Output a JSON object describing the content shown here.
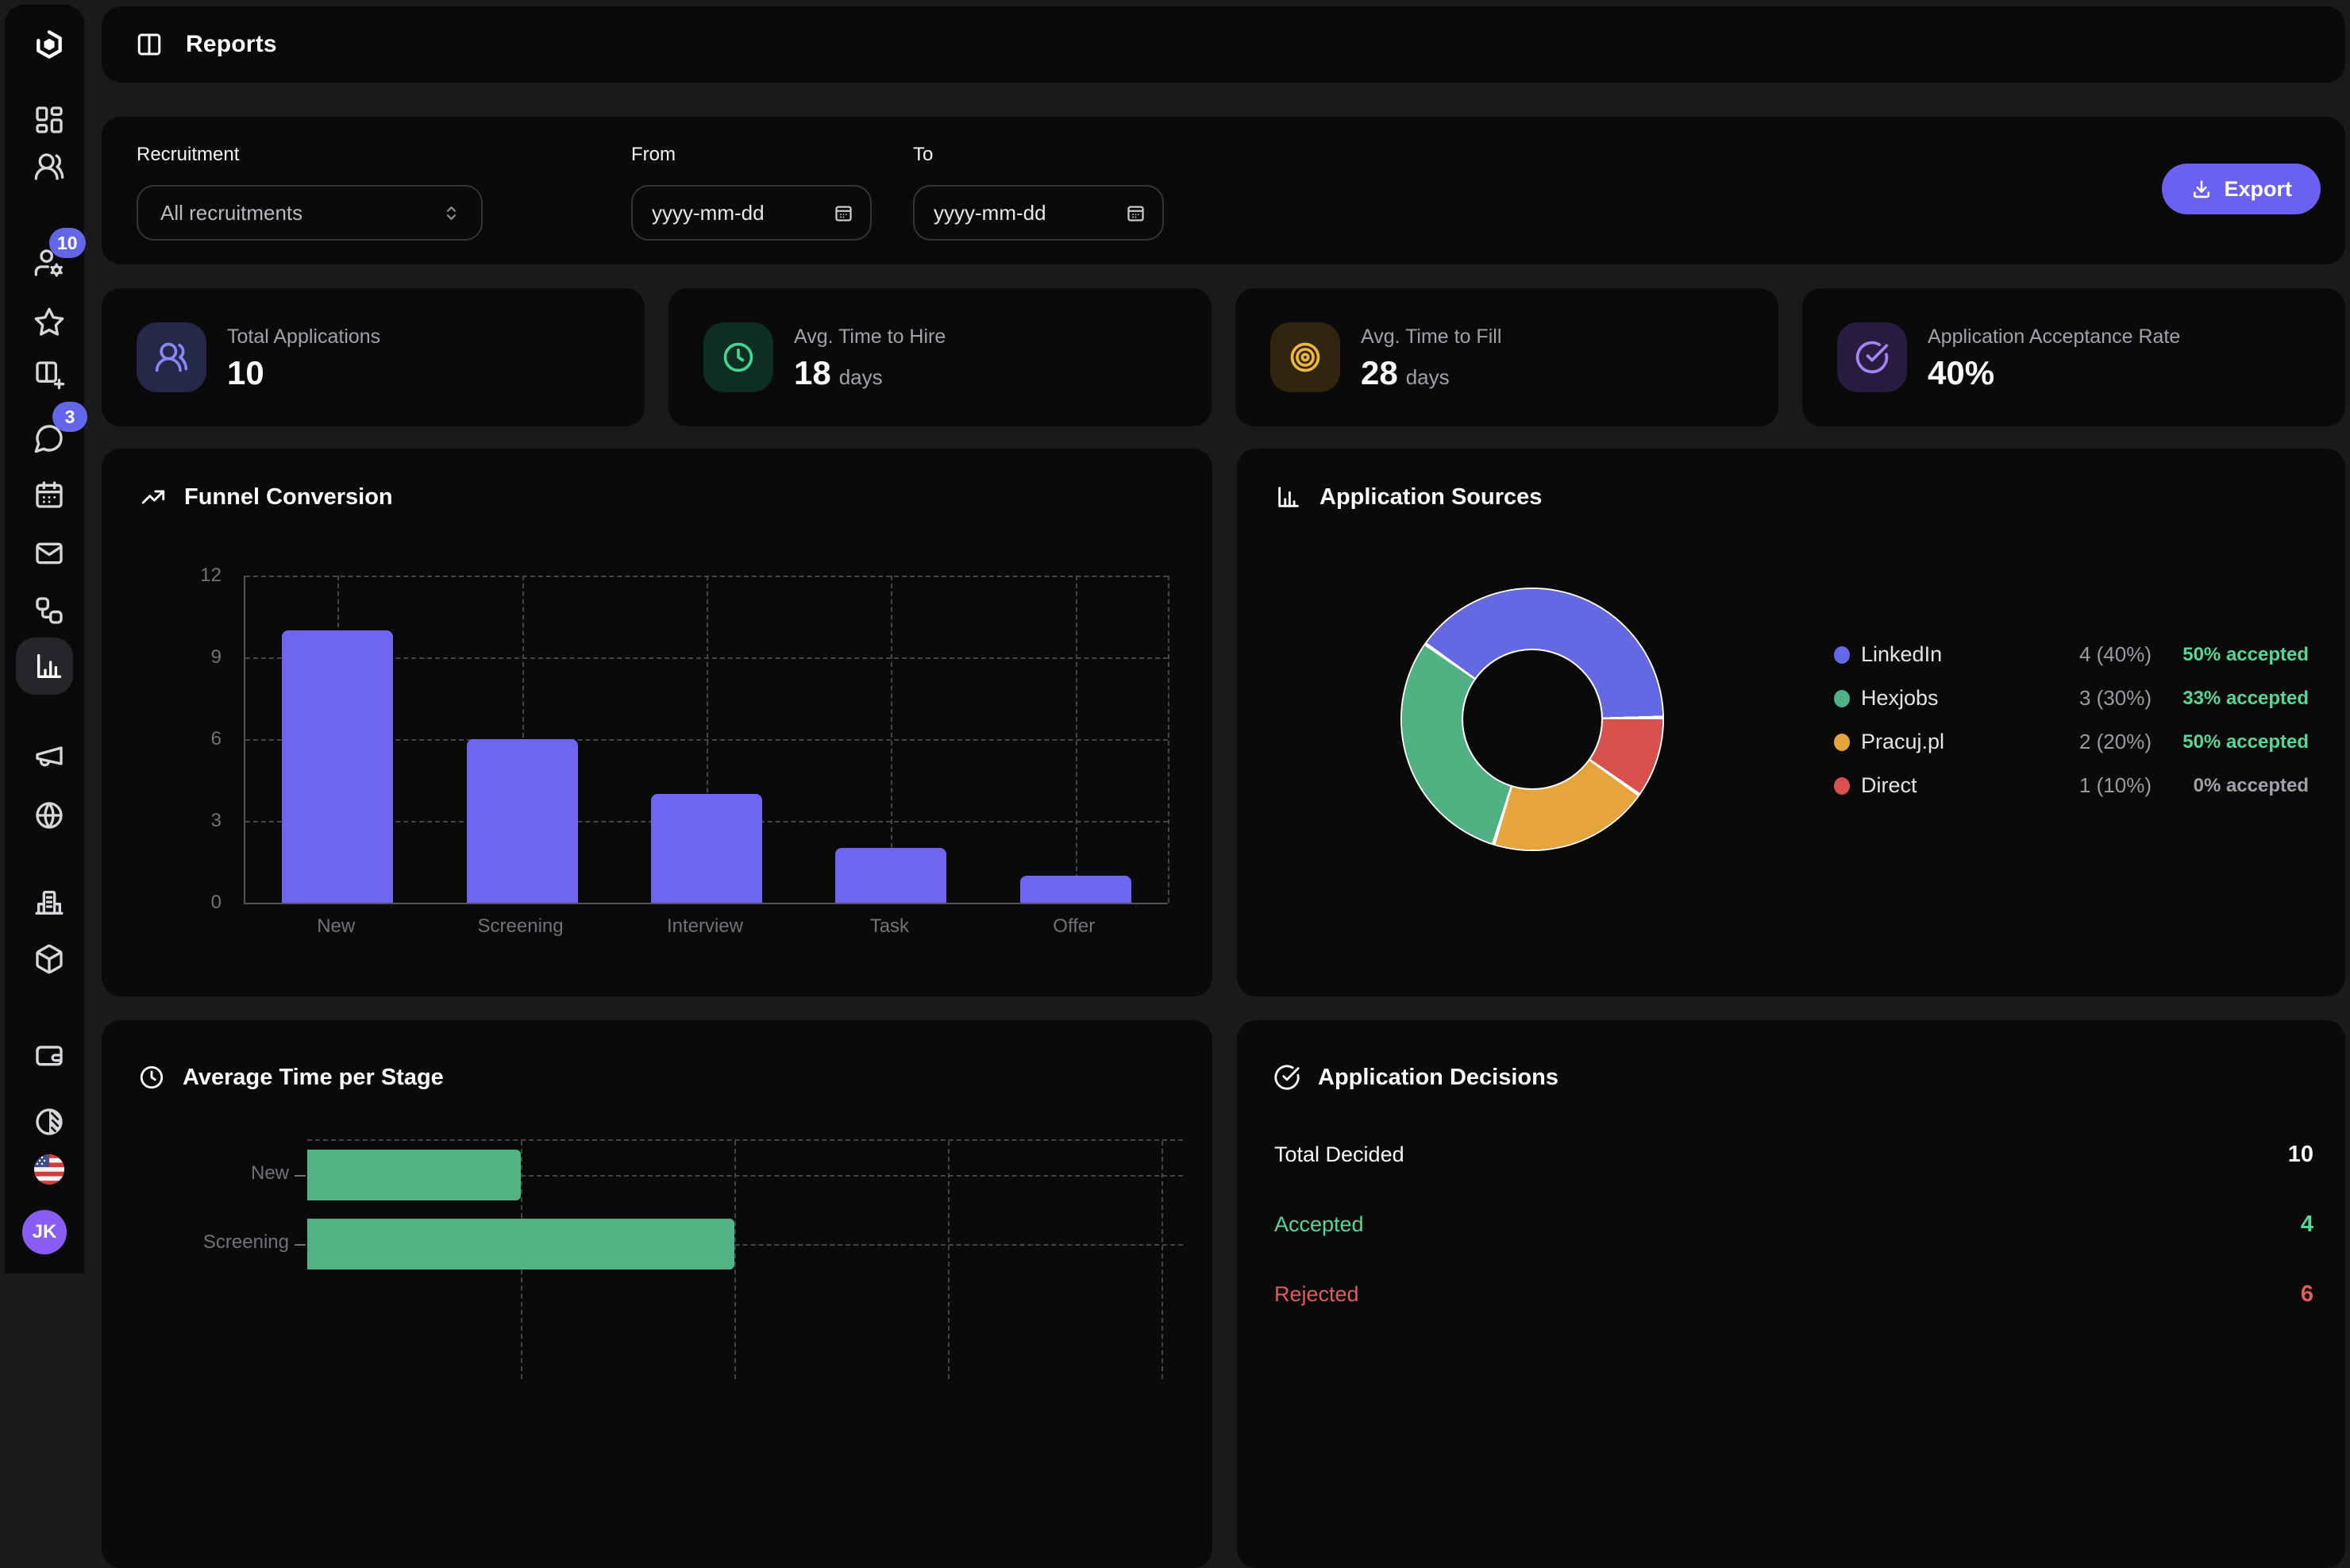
{
  "app": {
    "title": "Reports"
  },
  "sidebar": {
    "icons": [
      "logo",
      "dashboard",
      "users",
      "user-settings",
      "star",
      "board-plus",
      "chat",
      "calendar",
      "mail",
      "workflow",
      "reports",
      "megaphone",
      "globe",
      "company",
      "packages",
      "billing",
      "theme-contrast",
      "language-us-flag"
    ],
    "active_item": "reports",
    "badges": {
      "recruitments": "10",
      "chat": "3"
    },
    "avatar_initials": "JK",
    "accent_color": "#6366e8",
    "avatar_color": "#8a5cf6"
  },
  "filters": {
    "recruitment": {
      "label": "Recruitment",
      "value": "All recruitments"
    },
    "from": {
      "label": "From",
      "value": "yyyy-mm-dd"
    },
    "to": {
      "label": "To",
      "value": "yyyy-mm-dd"
    },
    "export_label": "Export",
    "export_color": "#6b61f0"
  },
  "stats": [
    {
      "label": "Total Applications",
      "value": "10",
      "suffix": "",
      "icon": "users",
      "icon_color": "#8689f3",
      "icon_bg": "#26284a"
    },
    {
      "label": "Avg. Time to Hire",
      "value": "18",
      "suffix": "days",
      "icon": "clock",
      "icon_color": "#43d692",
      "icon_bg": "#0e2d23"
    },
    {
      "label": "Avg. Time to Fill",
      "value": "28",
      "suffix": "days",
      "icon": "target",
      "icon_color": "#efb63e",
      "icon_bg": "#312510"
    },
    {
      "label": "Application Acceptance Rate",
      "value": "40%",
      "suffix": "",
      "icon": "circle-check",
      "icon_color": "#a585f5",
      "icon_bg": "#281c40"
    }
  ],
  "chart_data": [
    {
      "type": "bar",
      "title": "Funnel Conversion",
      "categories": [
        "New",
        "Screening",
        "Interview",
        "Task",
        "Offer"
      ],
      "values": [
        10,
        6,
        4,
        2,
        1
      ],
      "ylim": [
        0,
        12
      ],
      "yticks": [
        0,
        3,
        6,
        9,
        12
      ],
      "grid": true,
      "bar_color": "#6e66f1"
    },
    {
      "type": "pie",
      "title": "Application Sources",
      "donut": true,
      "legend_position": "right",
      "start_angle_deg": -54,
      "clockwise_order": [
        "LinkedIn",
        "Direct",
        "Pracuj.pl",
        "Hexjobs"
      ],
      "slices": [
        {
          "label": "LinkedIn",
          "value": 4,
          "count_display": "4 (40%)",
          "accepted_display": "50% accepted",
          "color": "#6468e2",
          "accepted_color": "#57d796"
        },
        {
          "label": "Hexjobs",
          "value": 3,
          "count_display": "3 (30%)",
          "accepted_display": "33% accepted",
          "color": "#50b183",
          "accepted_color": "#57d796"
        },
        {
          "label": "Pracuj.pl",
          "value": 2,
          "count_display": "2 (20%)",
          "accepted_display": "50% accepted",
          "color": "#e5a43c",
          "accepted_color": "#57d796"
        },
        {
          "label": "Direct",
          "value": 1,
          "count_display": "1 (10%)",
          "accepted_display": "0% accepted",
          "color": "#d9514f",
          "accepted_color": "#a1a1aa"
        }
      ]
    },
    {
      "type": "bar",
      "title": "Average Time per Stage",
      "orientation": "horizontal",
      "categories": [
        "New",
        "Screening"
      ],
      "values": [
        1,
        2
      ],
      "xlim": [
        0,
        4.1
      ],
      "xticks": [
        1,
        2,
        3,
        4
      ],
      "grid": true,
      "bar_color": "#53b483"
    },
    {
      "type": "table",
      "title": "Application Decisions",
      "rows": [
        {
          "label": "Total Decided",
          "value": "10",
          "color": "#fafafa",
          "value_color": "#fafafa"
        },
        {
          "label": "Accepted",
          "value": "4",
          "color": "#57d796",
          "value_color": "#57d796"
        },
        {
          "label": "Rejected",
          "value": "6",
          "color": "#e05c5c",
          "value_color": "#e05c5c"
        }
      ]
    }
  ]
}
